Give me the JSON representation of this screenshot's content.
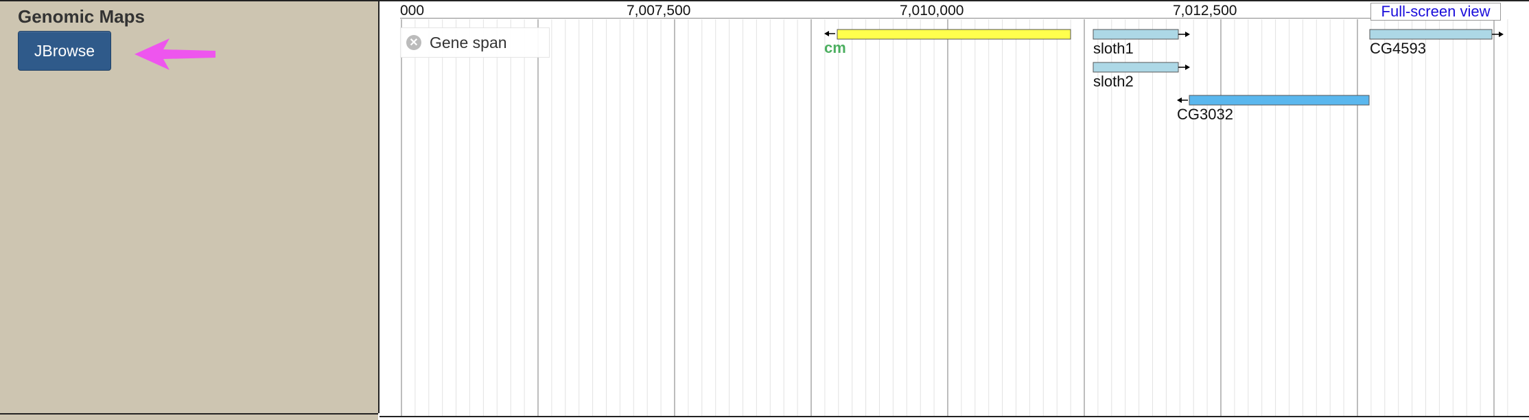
{
  "sidebar": {
    "title": "Genomic Maps",
    "jbrowse_button": "JBrowse"
  },
  "browser": {
    "ruler": {
      "labels": [
        "000",
        "7,007,500",
        "7,010,000",
        "7,012,500"
      ]
    },
    "fullscreen_link": "Full-screen view",
    "track": {
      "label": "Gene span",
      "close_icon": "close-icon"
    },
    "features": [
      {
        "name": "cm",
        "color": "#ffff4d",
        "strand": "-"
      },
      {
        "name": "sloth1",
        "color": "#add8e6",
        "strand": "+"
      },
      {
        "name": "sloth2",
        "color": "#add8e6",
        "strand": "+"
      },
      {
        "name": "CG3032",
        "color": "#5ab7ee",
        "strand": "-"
      },
      {
        "name": "CG4593",
        "color": "#add8e6",
        "strand": "+"
      }
    ]
  },
  "colors": {
    "sidebar_bg": "#cdc5b1",
    "button_bg": "#2f5a8a",
    "arrow": "#ee55ee",
    "link": "#1a0ddb"
  }
}
